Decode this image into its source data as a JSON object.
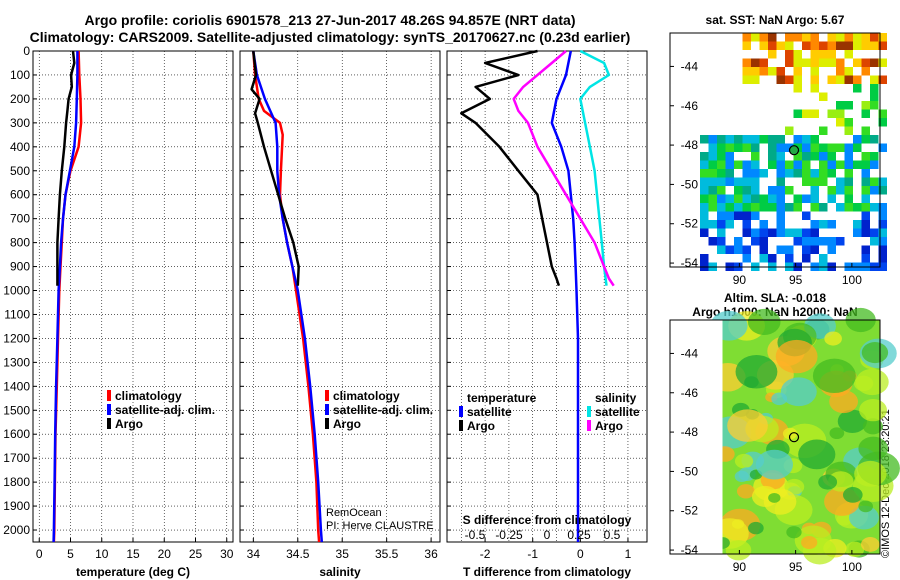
{
  "header": {
    "line1": "Argo profile: coriolis 6901578_213 27-Jun-2017 48.26S 94.857E (NRT data)",
    "line2": "Climatology: CARS2009. Satellite-adjusted climatology: synTS_20170627.nc (0.23d earlier)"
  },
  "colors": {
    "climatology": "#ff0000",
    "satellite": "#0000ff",
    "argo": "#000000",
    "satellite_salinity": "#00e5e5",
    "argo_salinity": "#ff00ff"
  },
  "right_panels": {
    "sst_title": "sat. SST: NaN Argo: 5.67",
    "sla_title": "Altim. SLA: -0.018",
    "h_title": "Argo h1000: NaN h2000: NaN",
    "credit": "©IMOS 12-Dec-2018 23:20:21"
  },
  "chart_data": [
    {
      "type": "line",
      "id": "temperature",
      "xlabel": "temperature (deg C)",
      "ylabel": "",
      "xlim": [
        -1,
        31
      ],
      "ylim": [
        2050,
        0
      ],
      "xticks": [
        0,
        5,
        10,
        15,
        20,
        25,
        30
      ],
      "xtick_labels": [
        "0",
        "5",
        "10",
        "15",
        "20",
        "25",
        "30"
      ],
      "yticks": [
        0,
        100,
        200,
        300,
        400,
        500,
        600,
        700,
        800,
        900,
        1000,
        1100,
        1200,
        1300,
        1400,
        1500,
        1600,
        1700,
        1800,
        1900,
        2000
      ],
      "ytick_labels": [
        "0",
        "100",
        "200",
        "300",
        "400",
        "500",
        "600",
        "700",
        "800",
        "900",
        "1000",
        "1100",
        "1200",
        "1300",
        "1400",
        "1500",
        "1600",
        "1700",
        "1800",
        "1900",
        "2000"
      ],
      "legend": [
        "climatology",
        "satellite-adj. clim.",
        "Argo"
      ],
      "series": [
        {
          "name": "climatology",
          "color": "#ff0000",
          "x": [
            6.3,
            6.4,
            6.6,
            6.7,
            6.3,
            5.0,
            4.2,
            3.8,
            3.6,
            3.4,
            3.2,
            3.0,
            2.8,
            2.6,
            2.5,
            2.4,
            2.35
          ],
          "y": [
            0,
            100,
            200,
            300,
            400,
            500,
            600,
            700,
            800,
            900,
            1000,
            1200,
            1400,
            1600,
            1800,
            2000,
            2050
          ]
        },
        {
          "name": "satellite-adj. clim.",
          "color": "#0000ff",
          "x": [
            6.1,
            6.1,
            6.0,
            5.9,
            5.6,
            4.9,
            4.2,
            3.8,
            3.5,
            3.3,
            3.1,
            2.9,
            2.7,
            2.55,
            2.45,
            2.35,
            2.3
          ],
          "y": [
            0,
            100,
            200,
            300,
            400,
            500,
            600,
            700,
            800,
            900,
            1000,
            1200,
            1400,
            1600,
            1800,
            2000,
            2050
          ]
        },
        {
          "name": "Argo",
          "color": "#000000",
          "x": [
            5.4,
            5.6,
            5.1,
            5.2,
            4.7,
            4.5,
            4.3,
            4.0,
            3.6,
            3.3,
            3.1,
            2.9,
            2.9
          ],
          "y": [
            0,
            50,
            100,
            150,
            200,
            250,
            300,
            400,
            500,
            600,
            700,
            800,
            980
          ]
        }
      ]
    },
    {
      "type": "line",
      "id": "salinity",
      "xlabel": "salinity",
      "xlim": [
        33.85,
        36.1
      ],
      "ylim": [
        2050,
        0
      ],
      "xticks": [
        34,
        34.5,
        35,
        35.5,
        36
      ],
      "xtick_labels": [
        "34",
        "34.5",
        "35",
        "35.5",
        "36"
      ],
      "legend": [
        "climatology",
        "satellite-adj. clim.",
        "Argo"
      ],
      "annotation_lines": [
        "RemOcean",
        "PI: Herve CLAUSTRE"
      ],
      "series": [
        {
          "name": "climatology",
          "color": "#ff0000",
          "x": [
            34.0,
            34.02,
            34.06,
            34.12,
            34.3,
            34.33,
            34.31,
            34.3,
            34.33,
            34.38,
            34.44,
            34.48,
            34.56,
            34.62,
            34.67,
            34.71,
            34.73,
            34.74
          ],
          "y": [
            0,
            100,
            200,
            250,
            300,
            350,
            500,
            600,
            700,
            800,
            900,
            1000,
            1200,
            1400,
            1600,
            1800,
            2000,
            2050
          ]
        },
        {
          "name": "satellite-adj. clim.",
          "color": "#0000ff",
          "x": [
            34.0,
            34.04,
            34.13,
            34.25,
            34.27,
            34.27,
            34.29,
            34.33,
            34.38,
            34.44,
            34.5,
            34.58,
            34.64,
            34.69,
            34.73,
            34.76,
            34.77
          ],
          "y": [
            0,
            100,
            200,
            300,
            400,
            500,
            600,
            700,
            800,
            900,
            1000,
            1200,
            1400,
            1600,
            1800,
            2000,
            2050
          ]
        },
        {
          "name": "Argo",
          "color": "#000000",
          "x": [
            34.0,
            34.03,
            33.98,
            34.07,
            34.02,
            34.05,
            34.12,
            34.2,
            34.28,
            34.36,
            34.45,
            34.51,
            34.5
          ],
          "y": [
            0,
            100,
            160,
            200,
            260,
            300,
            400,
            500,
            600,
            700,
            800,
            900,
            980
          ]
        }
      ]
    },
    {
      "type": "line",
      "id": "difference",
      "xlabel": "T difference from climatology",
      "top_label": "S difference from climatology",
      "xlim": [
        -2.8,
        1.4
      ],
      "ylim": [
        2050,
        0
      ],
      "xticks": [
        -2,
        -1,
        0,
        1
      ],
      "xtick_labels": [
        "-2",
        "-1",
        "0",
        "1"
      ],
      "top_ticks": [
        "-0.5",
        "-0.25",
        "0",
        "0.25",
        "0.5"
      ],
      "legend_groups": [
        {
          "title": "temperature",
          "items": [
            "satellite",
            "Argo"
          ]
        },
        {
          "title": "salinity",
          "items": [
            "satellite",
            "Argo"
          ]
        }
      ],
      "series": [
        {
          "name": "temperature satellite",
          "color": "#0000ff",
          "x": [
            -0.2,
            -0.3,
            -0.5,
            -0.6,
            -0.4,
            -0.25,
            -0.2,
            -0.15,
            -0.12,
            -0.1,
            -0.08,
            -0.05,
            -0.05,
            -0.05,
            -0.05,
            -0.05,
            -0.05
          ],
          "y": [
            0,
            100,
            200,
            300,
            400,
            500,
            600,
            700,
            800,
            900,
            1000,
            1200,
            1400,
            1600,
            1800,
            2000,
            2050
          ]
        },
        {
          "name": "temperature Argo",
          "color": "#000000",
          "x": [
            -0.9,
            -2.0,
            -1.3,
            -2.2,
            -1.9,
            -2.5,
            -2.2,
            -1.7,
            -1.3,
            -0.9,
            -0.8,
            -0.7,
            -0.6,
            -0.5,
            -0.45
          ],
          "y": [
            0,
            50,
            100,
            150,
            200,
            260,
            300,
            400,
            500,
            600,
            700,
            800,
            900,
            950,
            980
          ]
        },
        {
          "name": "salinity satellite",
          "color": "#00e5e5",
          "x": [
            0.0,
            0.5,
            0.6,
            0.2,
            0.0,
            0.1,
            0.2,
            0.3,
            0.35,
            0.4,
            0.45,
            0.5,
            0.55
          ],
          "y": [
            0,
            50,
            100,
            150,
            200,
            300,
            400,
            500,
            600,
            700,
            800,
            900,
            980
          ]
        },
        {
          "name": "salinity Argo",
          "color": "#ff00ff",
          "x": [
            -0.3,
            -0.6,
            -1.2,
            -1.4,
            -1.3,
            -1.1,
            -0.9,
            -0.6,
            -0.3,
            0.0,
            0.3,
            0.5,
            0.6,
            0.7
          ],
          "y": [
            0,
            50,
            150,
            200,
            250,
            300,
            400,
            500,
            600,
            700,
            800,
            900,
            950,
            980
          ]
        }
      ]
    },
    {
      "type": "heatmap",
      "id": "sst_map",
      "title": "sat. SST: NaN Argo: 5.67",
      "xlim": [
        86.5,
        102.5
      ],
      "ylim": [
        -54.2,
        -42.3
      ],
      "xticks": [
        90,
        95,
        100
      ],
      "xtick_labels": [
        "90",
        "95",
        "100"
      ],
      "yticks": [
        -44,
        -46,
        -48,
        -50,
        -52,
        -54
      ],
      "ytick_labels": [
        "-44",
        "-46",
        "-48",
        "-50",
        "-52",
        "-54"
      ],
      "marker": {
        "lon": 94.857,
        "lat": -48.26
      }
    },
    {
      "type": "heatmap",
      "id": "sla_map",
      "title": "Altim. SLA: -0.018",
      "xlim": [
        86.5,
        102.5
      ],
      "ylim": [
        -54.2,
        -42.3
      ],
      "xticks": [
        90,
        95,
        100
      ],
      "xtick_labels": [
        "90",
        "95",
        "100"
      ],
      "yticks": [
        -44,
        -46,
        -48,
        -50,
        -52,
        -54
      ],
      "ytick_labels": [
        "-44",
        "-46",
        "-48",
        "-50",
        "-52",
        "-54"
      ],
      "marker": {
        "lon": 94.857,
        "lat": -48.26
      }
    }
  ]
}
